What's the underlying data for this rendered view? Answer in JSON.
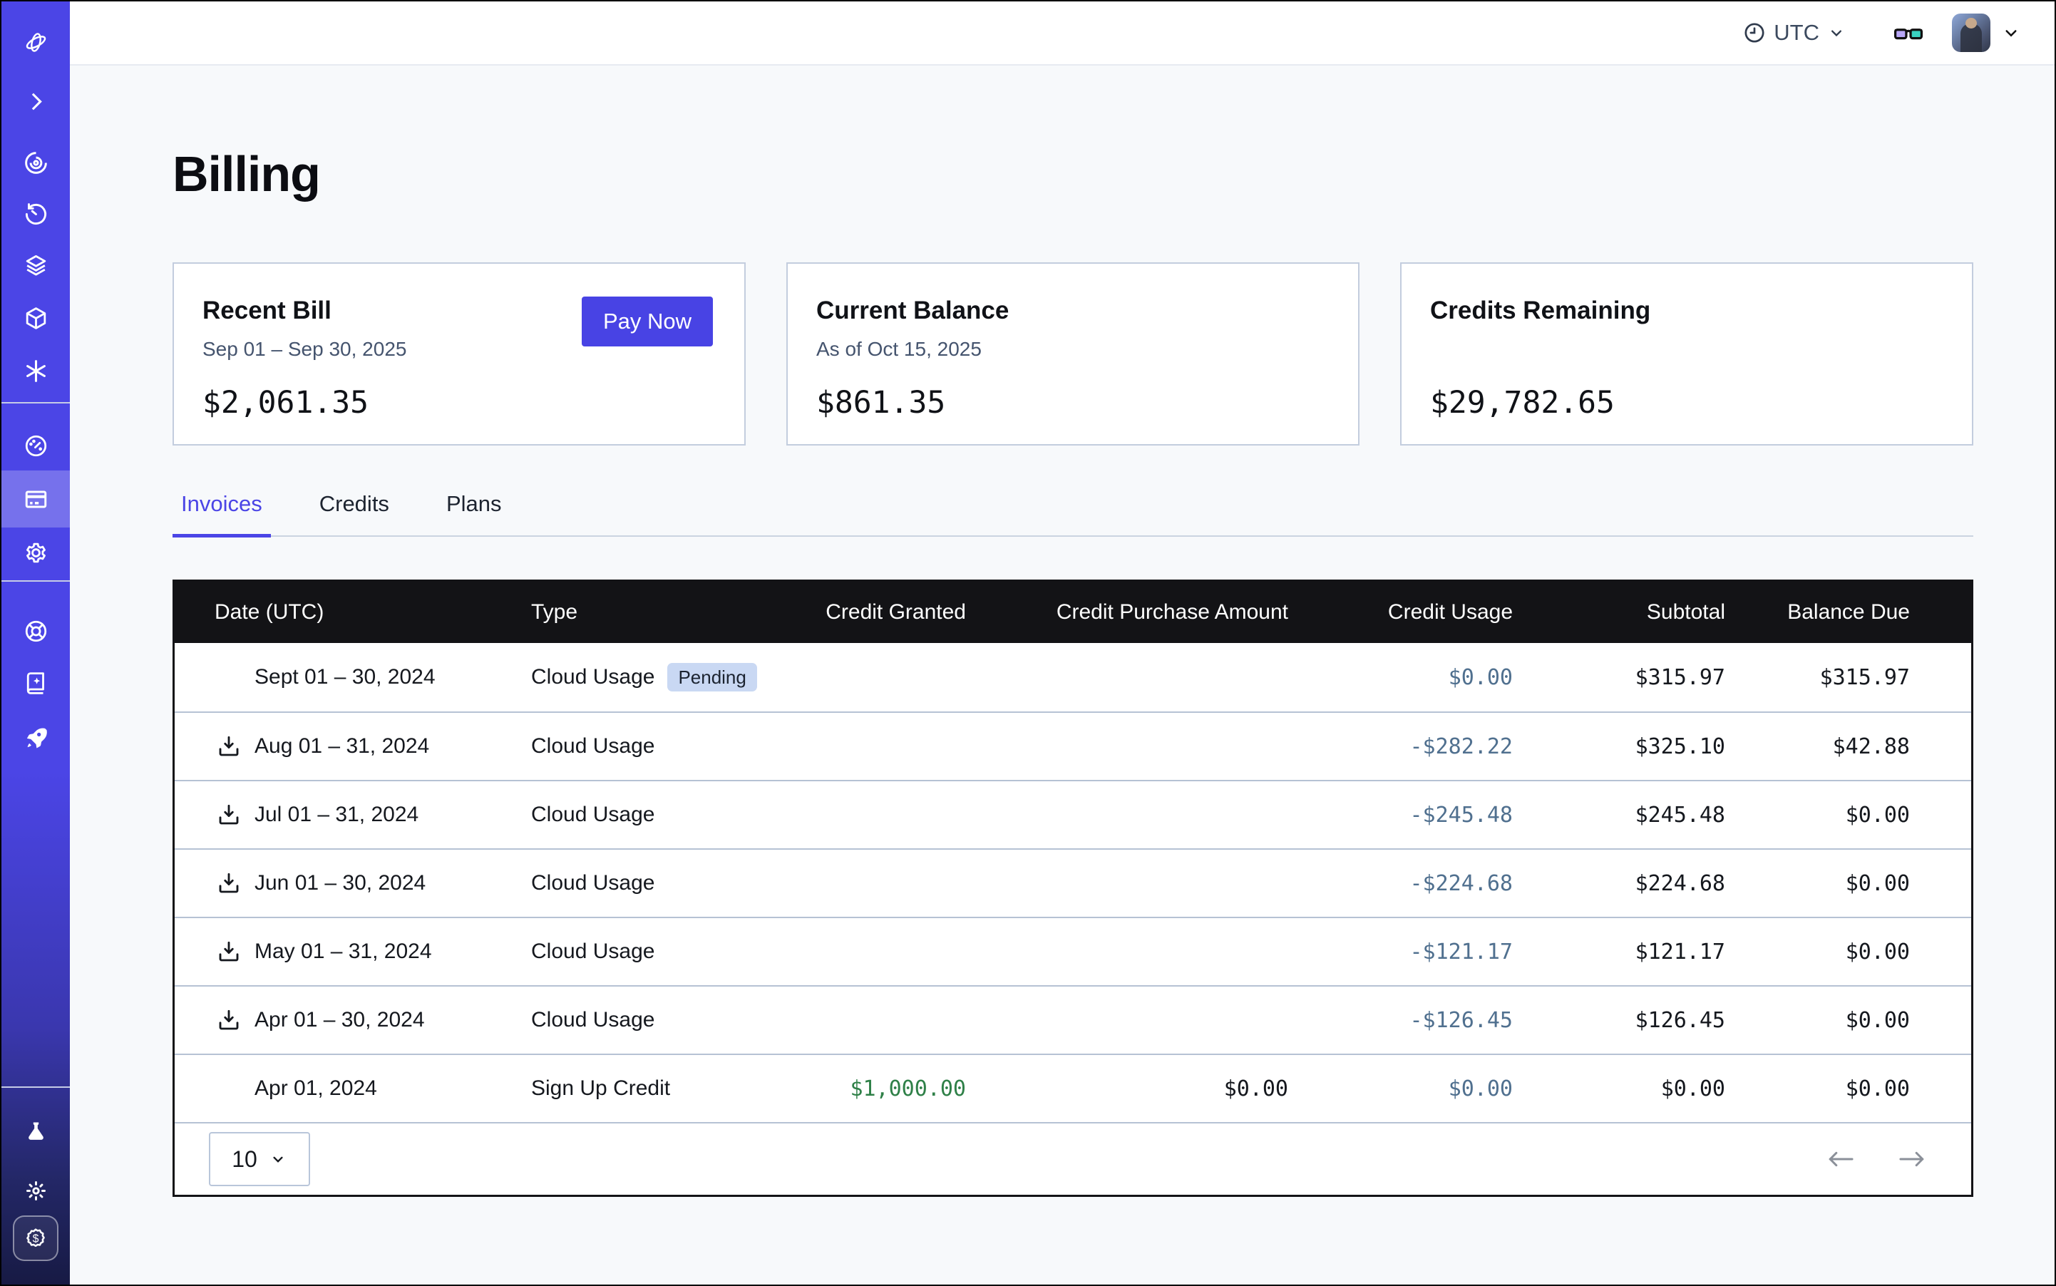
{
  "topbar": {
    "timezone": "UTC"
  },
  "sidebar": {
    "items": [
      "logo",
      "expand",
      "radar",
      "history",
      "layers",
      "sandbox",
      "functions",
      "usage",
      "billing",
      "settings",
      "support",
      "docs",
      "launch",
      "labs",
      "theme",
      "credits"
    ],
    "active_item": "billing"
  },
  "page": {
    "title": "Billing"
  },
  "cards": [
    {
      "title": "Recent Bill",
      "subtitle": "Sep 01 – Sep 30, 2025",
      "amount": "$2,061.35",
      "action_label": "Pay Now"
    },
    {
      "title": "Current Balance",
      "subtitle": "As of Oct 15, 2025",
      "amount": "$861.35"
    },
    {
      "title": "Credits Remaining",
      "subtitle": "",
      "amount": "$29,782.65"
    }
  ],
  "tabs": [
    {
      "label": "Invoices",
      "active": true
    },
    {
      "label": "Credits",
      "active": false
    },
    {
      "label": "Plans",
      "active": false
    }
  ],
  "table": {
    "columns": [
      "Date (UTC)",
      "Type",
      "Credit Granted",
      "Credit Purchase Amount",
      "Credit Usage",
      "Subtotal",
      "Balance Due"
    ],
    "rows": [
      {
        "date": "Sept 01 – 30, 2024",
        "type": "Cloud Usage",
        "badge": "Pending",
        "download": false,
        "granted": "",
        "purchase": "",
        "usage": "$0.00",
        "subtotal": "$315.97",
        "balance": "$315.97"
      },
      {
        "date": "Aug 01 – 31, 2024",
        "type": "Cloud Usage",
        "badge": "",
        "download": true,
        "granted": "",
        "purchase": "",
        "usage": "-$282.22",
        "subtotal": "$325.10",
        "balance": "$42.88"
      },
      {
        "date": "Jul 01 – 31, 2024",
        "type": "Cloud Usage",
        "badge": "",
        "download": true,
        "granted": "",
        "purchase": "",
        "usage": "-$245.48",
        "subtotal": "$245.48",
        "balance": "$0.00"
      },
      {
        "date": "Jun 01 – 30, 2024",
        "type": "Cloud Usage",
        "badge": "",
        "download": true,
        "granted": "",
        "purchase": "",
        "usage": "-$224.68",
        "subtotal": "$224.68",
        "balance": "$0.00"
      },
      {
        "date": "May 01 – 31, 2024",
        "type": "Cloud Usage",
        "badge": "",
        "download": true,
        "granted": "",
        "purchase": "",
        "usage": "-$121.17",
        "subtotal": "$121.17",
        "balance": "$0.00"
      },
      {
        "date": "Apr 01 – 30, 2024",
        "type": "Cloud Usage",
        "badge": "",
        "download": true,
        "granted": "",
        "purchase": "",
        "usage": "-$126.45",
        "subtotal": "$126.45",
        "balance": "$0.00"
      },
      {
        "date": "Apr 01, 2024",
        "type": "Sign Up Credit",
        "badge": "",
        "download": false,
        "granted": "$1,000.00",
        "purchase": "$0.00",
        "usage": "$0.00",
        "subtotal": "$0.00",
        "balance": "$0.00"
      }
    ],
    "page_size": "10"
  },
  "colors": {
    "accent": "#4843E4",
    "sidebar": "#4B45E6",
    "usage_text": "#50708F",
    "credit_green": "#2F8048",
    "table_header_bg": "#131316",
    "badge_bg": "#C9D8F3"
  }
}
